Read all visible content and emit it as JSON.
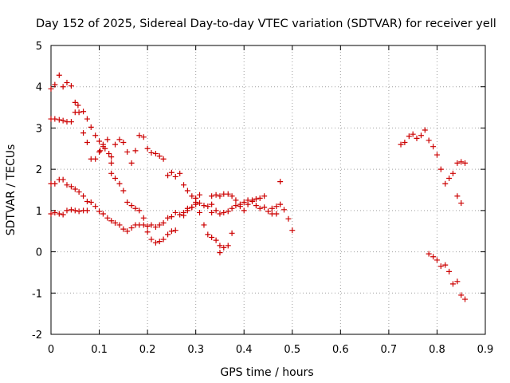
{
  "chart_data": {
    "type": "scatter",
    "title": "Day 152 of 2025, Sidereal Day-to-day VTEC variation (SDTVAR) for receiver yell",
    "xlabel": "GPS time / hours",
    "ylabel": "SDTVAR / TECUs",
    "xlim": [
      0,
      0.9
    ],
    "ylim": [
      -2,
      5
    ],
    "xticks": [
      0,
      0.1,
      0.2,
      0.3,
      0.4,
      0.5,
      0.6,
      0.7,
      0.8,
      0.9
    ],
    "xtick_labels": [
      "0",
      "0.1",
      "0.2",
      "0.3",
      "0.4",
      "0.5",
      "0.6",
      "0.7",
      "0.8",
      "0.9"
    ],
    "yticks": [
      -2,
      -1,
      0,
      1,
      2,
      3,
      4,
      5
    ],
    "ytick_labels": [
      "-2",
      "-1",
      "0",
      "1",
      "2",
      "3",
      "4",
      "5"
    ],
    "grid": true,
    "marker": "+",
    "color": "#cc0000",
    "points": [
      [
        0.0,
        3.95
      ],
      [
        0.008,
        4.05
      ],
      [
        0.017,
        4.28
      ],
      [
        0.025,
        4.0
      ],
      [
        0.033,
        4.1
      ],
      [
        0.042,
        4.02
      ],
      [
        0.05,
        3.62
      ],
      [
        0.056,
        3.55
      ],
      [
        0.05,
        3.38
      ],
      [
        0.058,
        3.38
      ],
      [
        0.067,
        3.4
      ],
      [
        0.075,
        3.22
      ],
      [
        0.067,
        2.88
      ],
      [
        0.075,
        2.65
      ],
      [
        0.083,
        3.02
      ],
      [
        0.092,
        2.82
      ],
      [
        0.1,
        2.68
      ],
      [
        0.102,
        2.45
      ],
      [
        0.108,
        2.6
      ],
      [
        0.112,
        2.5
      ],
      [
        0.117,
        2.72
      ],
      [
        0.12,
        2.38
      ],
      [
        0.125,
        2.3
      ],
      [
        0.125,
        2.15
      ],
      [
        0.133,
        2.6
      ],
      [
        0.142,
        2.72
      ],
      [
        0.15,
        2.65
      ],
      [
        0.158,
        2.42
      ],
      [
        0.167,
        2.15
      ],
      [
        0.175,
        2.45
      ],
      [
        0.183,
        2.82
      ],
      [
        0.192,
        2.78
      ],
      [
        0.2,
        2.5
      ],
      [
        0.208,
        2.4
      ],
      [
        0.217,
        2.38
      ],
      [
        0.225,
        2.32
      ],
      [
        0.233,
        2.25
      ],
      [
        0.242,
        1.85
      ],
      [
        0.25,
        1.92
      ],
      [
        0.258,
        1.82
      ],
      [
        0.267,
        1.9
      ],
      [
        0.275,
        1.62
      ],
      [
        0.283,
        1.48
      ],
      [
        0.292,
        1.35
      ],
      [
        0.3,
        1.15
      ],
      [
        0.308,
        1.38
      ],
      [
        0.083,
        2.25
      ],
      [
        0.092,
        2.25
      ],
      [
        0.1,
        2.42
      ],
      [
        0.108,
        2.55
      ],
      [
        0.0,
        3.22
      ],
      [
        0.008,
        3.22
      ],
      [
        0.017,
        3.2
      ],
      [
        0.025,
        3.18
      ],
      [
        0.033,
        3.15
      ],
      [
        0.042,
        3.15
      ],
      [
        0.0,
        1.65
      ],
      [
        0.008,
        1.65
      ],
      [
        0.017,
        1.75
      ],
      [
        0.025,
        1.75
      ],
      [
        0.033,
        1.62
      ],
      [
        0.042,
        1.58
      ],
      [
        0.05,
        1.52
      ],
      [
        0.058,
        1.45
      ],
      [
        0.067,
        1.35
      ],
      [
        0.075,
        1.22
      ],
      [
        0.083,
        1.2
      ],
      [
        0.092,
        1.1
      ],
      [
        0.1,
        0.98
      ],
      [
        0.108,
        0.92
      ],
      [
        0.117,
        0.82
      ],
      [
        0.125,
        0.75
      ],
      [
        0.133,
        0.7
      ],
      [
        0.142,
        0.65
      ],
      [
        0.15,
        0.55
      ],
      [
        0.158,
        0.5
      ],
      [
        0.167,
        0.58
      ],
      [
        0.175,
        0.65
      ],
      [
        0.183,
        0.65
      ],
      [
        0.192,
        0.65
      ],
      [
        0.2,
        0.62
      ],
      [
        0.208,
        0.65
      ],
      [
        0.217,
        0.6
      ],
      [
        0.225,
        0.65
      ],
      [
        0.233,
        0.7
      ],
      [
        0.242,
        0.82
      ],
      [
        0.25,
        0.85
      ],
      [
        0.258,
        0.95
      ],
      [
        0.267,
        0.9
      ],
      [
        0.275,
        0.95
      ],
      [
        0.283,
        1.05
      ],
      [
        0.292,
        1.08
      ],
      [
        0.3,
        1.2
      ],
      [
        0.308,
        1.18
      ],
      [
        0.317,
        1.12
      ],
      [
        0.325,
        1.1
      ],
      [
        0.333,
        1.15
      ],
      [
        0.125,
        1.9
      ],
      [
        0.133,
        1.78
      ],
      [
        0.142,
        1.65
      ],
      [
        0.15,
        1.48
      ],
      [
        0.158,
        1.2
      ],
      [
        0.167,
        1.12
      ],
      [
        0.175,
        1.05
      ],
      [
        0.183,
        1.0
      ],
      [
        0.192,
        0.82
      ],
      [
        0.2,
        0.48
      ],
      [
        0.208,
        0.3
      ],
      [
        0.217,
        0.22
      ],
      [
        0.225,
        0.25
      ],
      [
        0.233,
        0.3
      ],
      [
        0.242,
        0.42
      ],
      [
        0.25,
        0.5
      ],
      [
        0.258,
        0.52
      ],
      [
        0.0,
        0.92
      ],
      [
        0.008,
        0.95
      ],
      [
        0.017,
        0.92
      ],
      [
        0.025,
        0.9
      ],
      [
        0.033,
        1.0
      ],
      [
        0.042,
        1.02
      ],
      [
        0.05,
        1.0
      ],
      [
        0.058,
        0.98
      ],
      [
        0.067,
        1.0
      ],
      [
        0.075,
        1.0
      ],
      [
        0.275,
        0.88
      ],
      [
        0.283,
        1.0
      ],
      [
        0.292,
        1.08
      ],
      [
        0.3,
        1.3
      ],
      [
        0.308,
        0.95
      ],
      [
        0.317,
        0.65
      ],
      [
        0.325,
        0.42
      ],
      [
        0.333,
        0.35
      ],
      [
        0.342,
        0.28
      ],
      [
        0.35,
        0.15
      ],
      [
        0.35,
        -0.02
      ],
      [
        0.358,
        0.1
      ],
      [
        0.367,
        0.15
      ],
      [
        0.375,
        0.45
      ],
      [
        0.333,
        0.95
      ],
      [
        0.342,
        1.0
      ],
      [
        0.35,
        0.92
      ],
      [
        0.358,
        0.95
      ],
      [
        0.367,
        0.98
      ],
      [
        0.375,
        1.05
      ],
      [
        0.383,
        1.12
      ],
      [
        0.392,
        1.15
      ],
      [
        0.4,
        1.2
      ],
      [
        0.408,
        1.25
      ],
      [
        0.417,
        1.25
      ],
      [
        0.425,
        1.28
      ],
      [
        0.433,
        1.3
      ],
      [
        0.442,
        1.35
      ],
      [
        0.333,
        1.35
      ],
      [
        0.342,
        1.38
      ],
      [
        0.35,
        1.35
      ],
      [
        0.358,
        1.4
      ],
      [
        0.367,
        1.4
      ],
      [
        0.375,
        1.35
      ],
      [
        0.383,
        1.25
      ],
      [
        0.392,
        1.1
      ],
      [
        0.4,
        1.0
      ],
      [
        0.408,
        1.15
      ],
      [
        0.417,
        1.22
      ],
      [
        0.425,
        1.12
      ],
      [
        0.433,
        1.05
      ],
      [
        0.442,
        1.08
      ],
      [
        0.45,
        0.98
      ],
      [
        0.458,
        1.05
      ],
      [
        0.467,
        0.92
      ],
      [
        0.475,
        1.15
      ],
      [
        0.475,
        1.7
      ],
      [
        0.483,
        1.02
      ],
      [
        0.492,
        0.8
      ],
      [
        0.5,
        0.52
      ],
      [
        0.458,
        0.92
      ],
      [
        0.467,
        1.1
      ],
      [
        0.725,
        2.6
      ],
      [
        0.733,
        2.65
      ],
      [
        0.742,
        2.8
      ],
      [
        0.75,
        2.85
      ],
      [
        0.758,
        2.75
      ],
      [
        0.767,
        2.82
      ],
      [
        0.775,
        2.95
      ],
      [
        0.783,
        2.7
      ],
      [
        0.792,
        2.55
      ],
      [
        0.8,
        2.35
      ],
      [
        0.808,
        2.0
      ],
      [
        0.817,
        1.65
      ],
      [
        0.825,
        1.78
      ],
      [
        0.833,
        1.9
      ],
      [
        0.842,
        2.15
      ],
      [
        0.85,
        2.18
      ],
      [
        0.858,
        2.15
      ],
      [
        0.842,
        1.35
      ],
      [
        0.85,
        1.18
      ],
      [
        0.783,
        -0.05
      ],
      [
        0.792,
        -0.12
      ],
      [
        0.8,
        -0.2
      ],
      [
        0.808,
        -0.35
      ],
      [
        0.817,
        -0.32
      ],
      [
        0.825,
        -0.48
      ],
      [
        0.833,
        -0.78
      ],
      [
        0.842,
        -0.72
      ],
      [
        0.85,
        -1.05
      ],
      [
        0.858,
        -1.15
      ]
    ]
  }
}
